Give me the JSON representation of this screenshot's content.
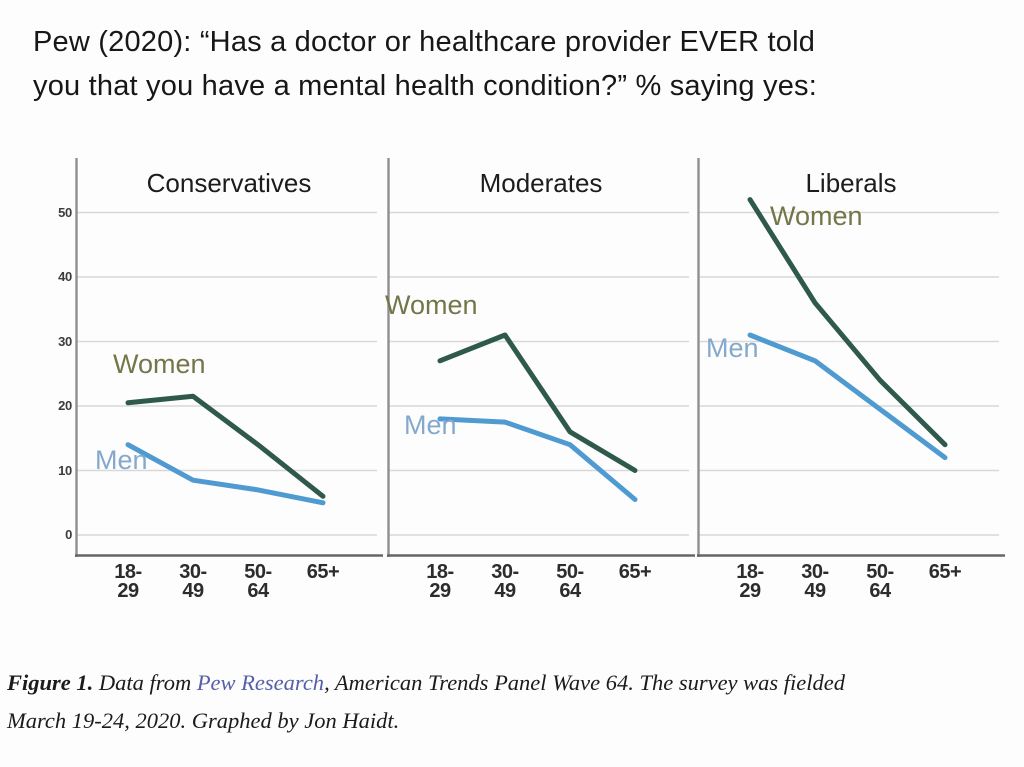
{
  "title": {
    "line1": "Pew (2020): “Has a doctor or healthcare provider EVER told",
    "line2": "you that you have a mental health condition?” % saying yes:"
  },
  "chart_data": {
    "type": "line",
    "categories": [
      "18-29",
      "30-49",
      "50-64",
      "65+"
    ],
    "yticks": [
      0,
      10,
      20,
      30,
      40,
      50
    ],
    "ylim": [
      0,
      58
    ],
    "grid": true,
    "legend_position": "inline-labels",
    "panels": [
      {
        "title": "Conservatives",
        "series": [
          {
            "name": "Women",
            "values": [
              20.5,
              21.5,
              14,
              6
            ]
          },
          {
            "name": "Men",
            "values": [
              14,
              8.5,
              7,
              5
            ]
          }
        ]
      },
      {
        "title": "Moderates",
        "series": [
          {
            "name": "Women",
            "values": [
              27,
              31,
              16,
              10
            ]
          },
          {
            "name": "Men",
            "values": [
              18,
              17.5,
              14,
              5.5
            ]
          }
        ]
      },
      {
        "title": "Liberals",
        "series": [
          {
            "name": "Women",
            "values": [
              52,
              36,
              24,
              14
            ]
          },
          {
            "name": "Men",
            "values": [
              31,
              27,
              19.5,
              12
            ]
          }
        ]
      }
    ],
    "colors": {
      "women_line": "#2f5a4b",
      "men_line": "#4f9bd1",
      "women_label": "#74764a",
      "men_label": "#84a9cd",
      "grid": "#d8d8d8",
      "axis": "#8f8f8f",
      "baseline": "#666666"
    }
  },
  "footer": {
    "figure_label": "Figure 1.",
    "pre_link": "  Data from ",
    "link_text": "Pew Research",
    "post_link": ", American Trends Panel Wave 64. The survey was fielded",
    "line2": "March 19-24, 2020. Graphed by Jon Haidt.",
    "link_color": "#5560a8"
  }
}
